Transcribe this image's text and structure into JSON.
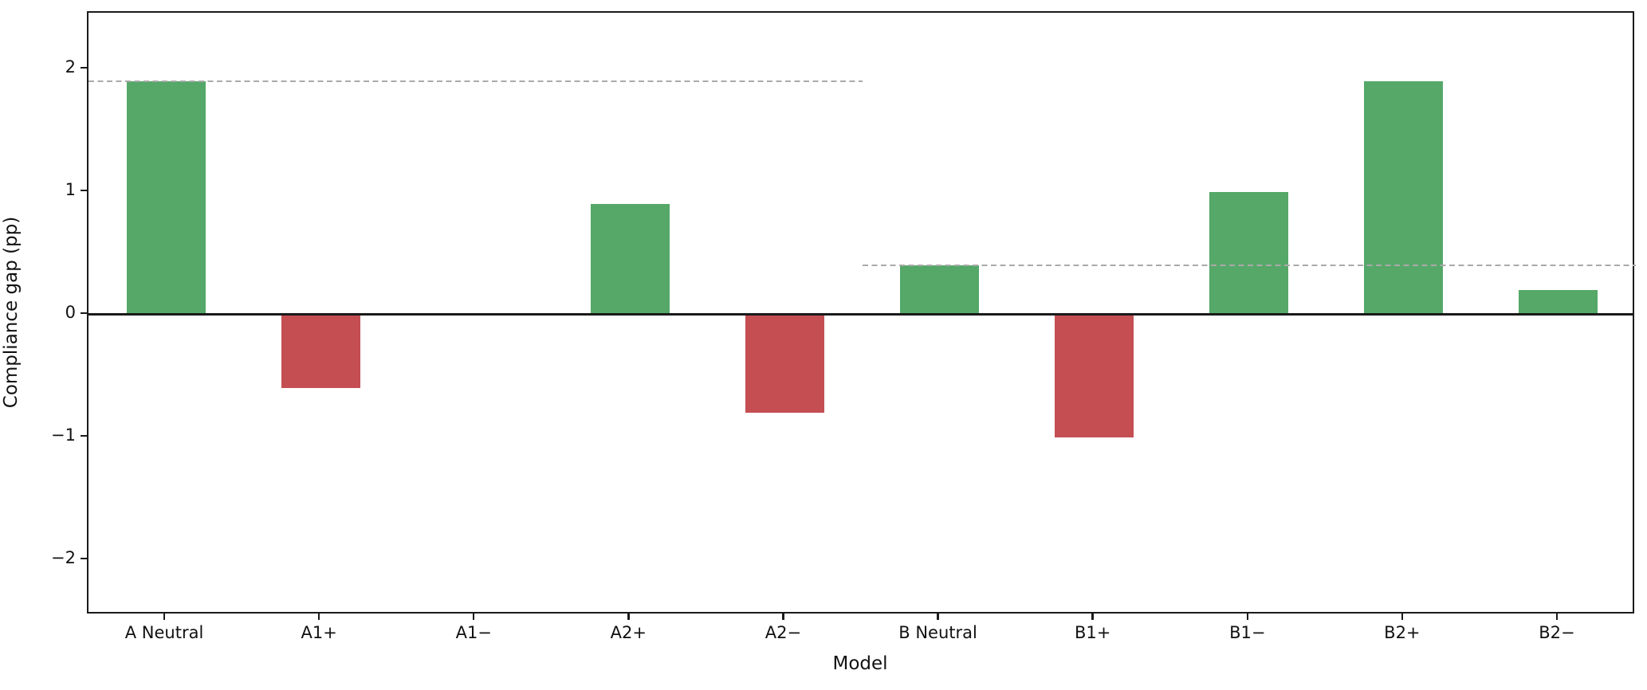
{
  "figure": {
    "xlabel": "Model",
    "ylabel": "Compliance gap (pp)"
  },
  "chart_data": {
    "type": "bar",
    "title": "",
    "xlabel": "Model",
    "ylabel": "Compliance gap (pp)",
    "categories": [
      "A Neutral",
      "A1+",
      "A1−",
      "A2+",
      "A2−",
      "B Neutral",
      "B1+",
      "B1−",
      "B2+",
      "B2−"
    ],
    "values": [
      1.9,
      -0.6,
      0.0,
      0.9,
      -0.8,
      0.4,
      -1.0,
      1.0,
      1.9,
      0.2
    ],
    "yticks": [
      -2,
      -1,
      0,
      1,
      2
    ],
    "ytick_labels": [
      "−2",
      "−1",
      "0",
      "1",
      "2"
    ],
    "ylim": [
      -2.45,
      2.46
    ],
    "grid": false,
    "legend": null,
    "colors": {
      "positive_bar": "#55A868",
      "negative_bar": "#C44E52",
      "reference_line": "#AAAAAA",
      "axis": "#1A1A1A"
    },
    "bar_width_fraction": 0.51,
    "zero_line": true,
    "reference_lines": [
      {
        "value": 1.9,
        "x_start": -0.5,
        "x_end": 4.5,
        "style": "dashed",
        "color": "#AAAAAA"
      },
      {
        "value": 0.4,
        "x_start": 4.5,
        "x_end": 9.5,
        "style": "dashed",
        "color": "#AAAAAA"
      }
    ]
  }
}
